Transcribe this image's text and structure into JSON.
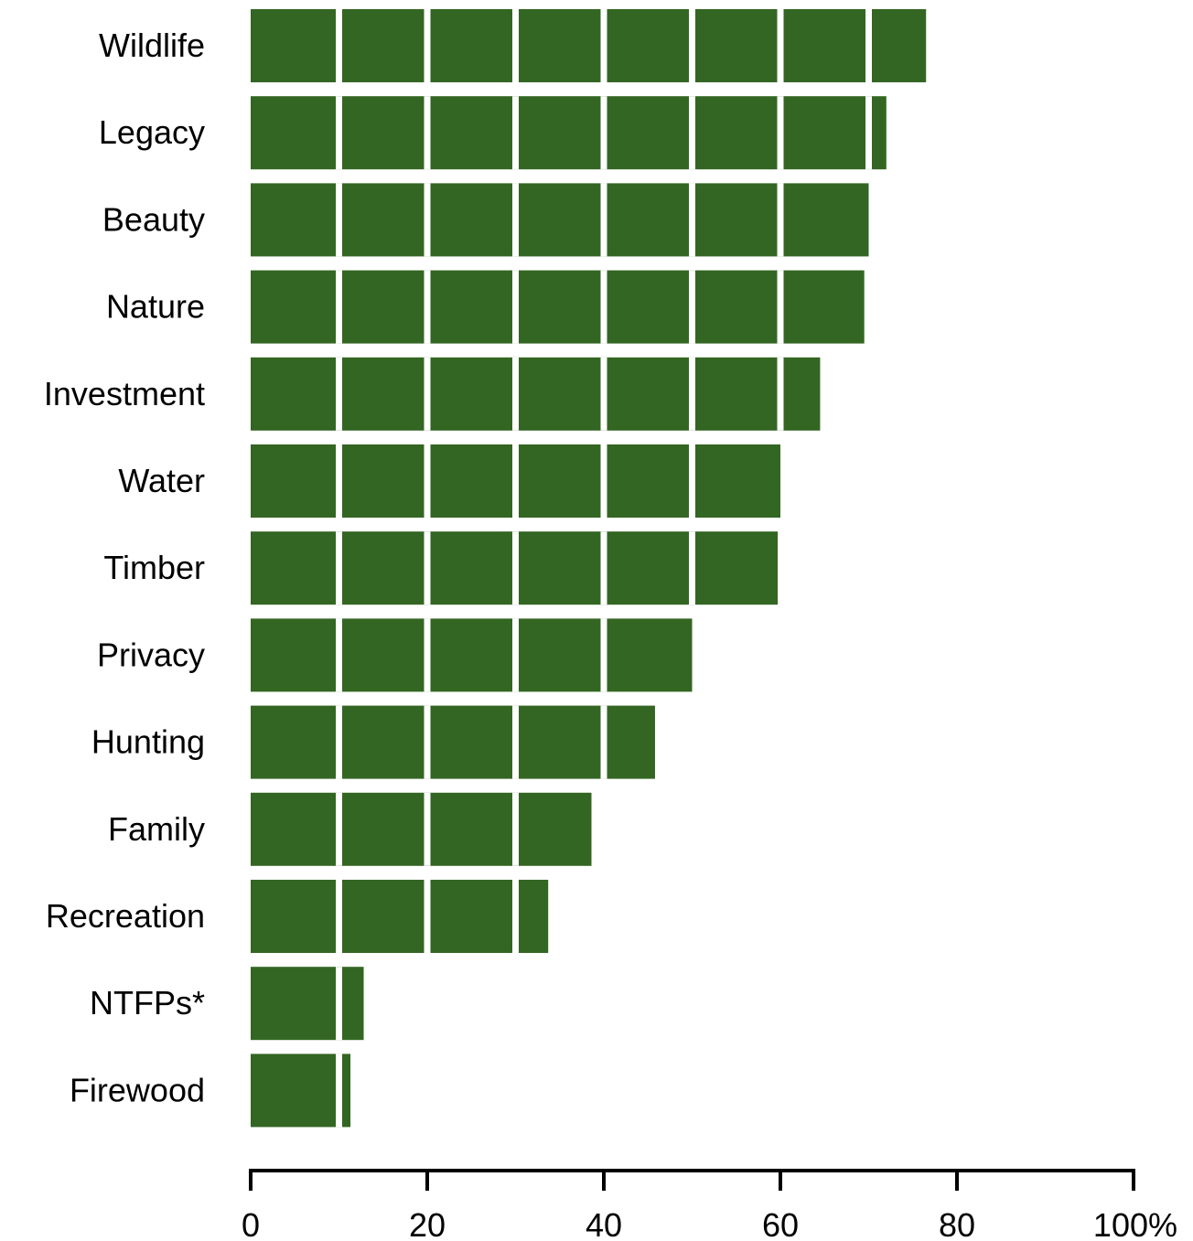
{
  "chart_data": {
    "type": "bar",
    "orientation": "horizontal",
    "categories": [
      "Wildlife",
      "Legacy",
      "Beauty",
      "Nature",
      "Investment",
      "Water",
      "Timber",
      "Privacy",
      "Hunting",
      "Family",
      "Recreation",
      "NTFPs*",
      "Firewood"
    ],
    "values": [
      76.5,
      72,
      70,
      69.5,
      64.5,
      60,
      59.7,
      50,
      45.8,
      38.6,
      33.7,
      12.8,
      11.3
    ],
    "xlim": [
      0,
      100
    ],
    "xticks": [
      0,
      20,
      40,
      60,
      80,
      100
    ],
    "xtick_labels": [
      "0",
      "20",
      "40",
      "60",
      "80",
      "100%"
    ],
    "segment_step": 10,
    "grid": false,
    "legend": "none",
    "bar_color": "#336622",
    "segment_divider_color": "#ffffff"
  }
}
